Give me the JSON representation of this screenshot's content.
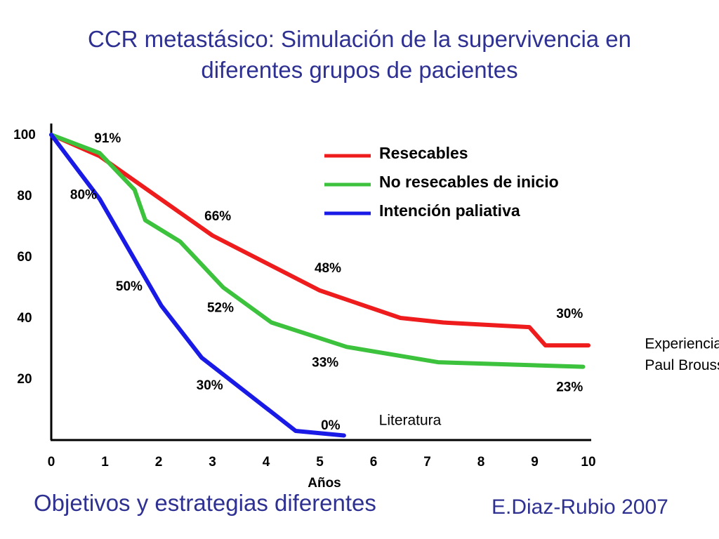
{
  "slide": {
    "title_line1": "CCR metastásico: Simulación de la supervivencia en",
    "title_line2": "diferentes grupos de pacientes",
    "subtitle": "Objetivos y estrategias diferentes",
    "credit": "E.Diaz-Rubio 2007"
  },
  "chart_data": {
    "type": "line",
    "xlabel": "Años",
    "ylabel": "",
    "xlim": [
      0,
      10
    ],
    "ylim": [
      0,
      100
    ],
    "xticks": [
      0,
      1,
      2,
      3,
      4,
      5,
      6,
      7,
      8,
      9,
      10
    ],
    "yticks": [
      20,
      40,
      60,
      80,
      100
    ],
    "grid": false,
    "legend_position": "top-right",
    "colors": {
      "Resecables": "#ee1c1c",
      "No resecables de inicio": "#3cc23c",
      "Intención paliativa": "#1a1ae6"
    },
    "series": [
      {
        "name": "Resecables",
        "x": [
          0,
          0.9,
          3,
          5,
          6.5,
          7.3,
          8.9,
          9.2,
          10
        ],
        "y": [
          100,
          93,
          67,
          49,
          40,
          38.5,
          37,
          31,
          31
        ]
      },
      {
        "name": "No resecables de inicio",
        "x": [
          0,
          0.9,
          1.55,
          1.75,
          2.4,
          3.2,
          4.1,
          5.5,
          7.2,
          9.9
        ],
        "y": [
          100,
          94,
          82,
          72,
          65,
          50,
          38.5,
          30.5,
          25.5,
          24
        ]
      },
      {
        "name": "Intención paliativa",
        "x": [
          0,
          0.9,
          2.05,
          2.8,
          4.55,
          5.45
        ],
        "y": [
          100,
          79,
          44,
          27,
          3,
          1.5
        ]
      }
    ],
    "annotations": [
      {
        "text": "91%",
        "x": 1.05,
        "y": 97.5,
        "color": "#000000"
      },
      {
        "text": "80%",
        "x": 0.6,
        "y": 79,
        "color": "#000000"
      },
      {
        "text": "66%",
        "x": 3.1,
        "y": 72,
        "color": "#000000"
      },
      {
        "text": "48%",
        "x": 5.15,
        "y": 55,
        "color": "#000000"
      },
      {
        "text": "50%",
        "x": 1.45,
        "y": 49,
        "color": "#000000"
      },
      {
        "text": "52%",
        "x": 3.15,
        "y": 42,
        "color": "#000000"
      },
      {
        "text": "30%",
        "x": 9.65,
        "y": 40,
        "color": "#000000"
      },
      {
        "text": "33%",
        "x": 5.1,
        "y": 24,
        "color": "#000000"
      },
      {
        "text": "30%",
        "x": 2.95,
        "y": 16.5,
        "color": "#000000"
      },
      {
        "text": "23%",
        "x": 9.65,
        "y": 16,
        "color": "#000000"
      },
      {
        "text": "0%",
        "x": 5.2,
        "y": 3.5,
        "color": "#000000"
      },
      {
        "text": "Literatura",
        "x": 6.1,
        "y": 5,
        "color": "#000000"
      },
      {
        "text": "Experiencia",
        "x": 11.05,
        "y": 30,
        "color": "#000000"
      },
      {
        "text": "Paul Brousse",
        "x": 11.05,
        "y": 23,
        "color": "#000000"
      }
    ]
  }
}
